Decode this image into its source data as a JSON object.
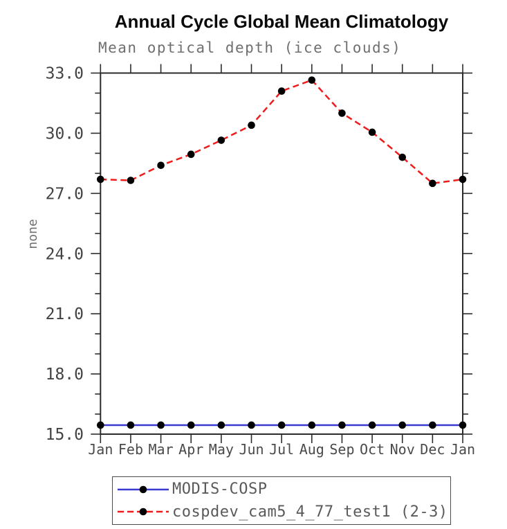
{
  "chart_data": {
    "type": "line",
    "title": "Annual Cycle Global Mean Climatology",
    "subtitle": "Mean optical depth (ice clouds)",
    "ylabel": "none",
    "xlabel": "",
    "categories": [
      "Jan",
      "Feb",
      "Mar",
      "Apr",
      "May",
      "Jun",
      "Jul",
      "Aug",
      "Sep",
      "Oct",
      "Nov",
      "Dec",
      "Jan"
    ],
    "series": [
      {
        "name": "MODIS-COSP",
        "style": "solid",
        "color": "#3a3ad1",
        "marker": "filled-circle",
        "marker_color": "#000000",
        "values": [
          15.45,
          15.45,
          15.45,
          15.45,
          15.45,
          15.45,
          15.45,
          15.45,
          15.45,
          15.45,
          15.45,
          15.45,
          15.45
        ]
      },
      {
        "name": "cospdev_cam5_4_77_test1 (2-3)",
        "style": "dashed",
        "color": "#ee1c1c",
        "marker": "filled-circle",
        "marker_color": "#000000",
        "values": [
          27.7,
          27.65,
          28.4,
          28.95,
          29.65,
          30.4,
          32.1,
          32.65,
          31.0,
          30.05,
          28.8,
          27.5,
          27.7
        ]
      }
    ],
    "ylim": [
      15.0,
      33.0
    ],
    "yticks_major": [
      15,
      18,
      21,
      24,
      27,
      30,
      33
    ],
    "ytick_labels": [
      "15.0",
      "18.0",
      "21.0",
      "24.0",
      "27.0",
      "30.0",
      "33.0"
    ],
    "minor_tick_interval": 1,
    "grid": false,
    "legend_position": "bottom-left-box"
  },
  "colors": {
    "axis": "#2b2b2b",
    "tick_label": "#424242",
    "month_label": "#4a4a4a",
    "subtitle_gray": "#6f6f6f",
    "legend_text": "#5a5a5a",
    "series_blue": "#3a3ad1",
    "series_red": "#ee1c1c",
    "marker_black": "#000000"
  }
}
